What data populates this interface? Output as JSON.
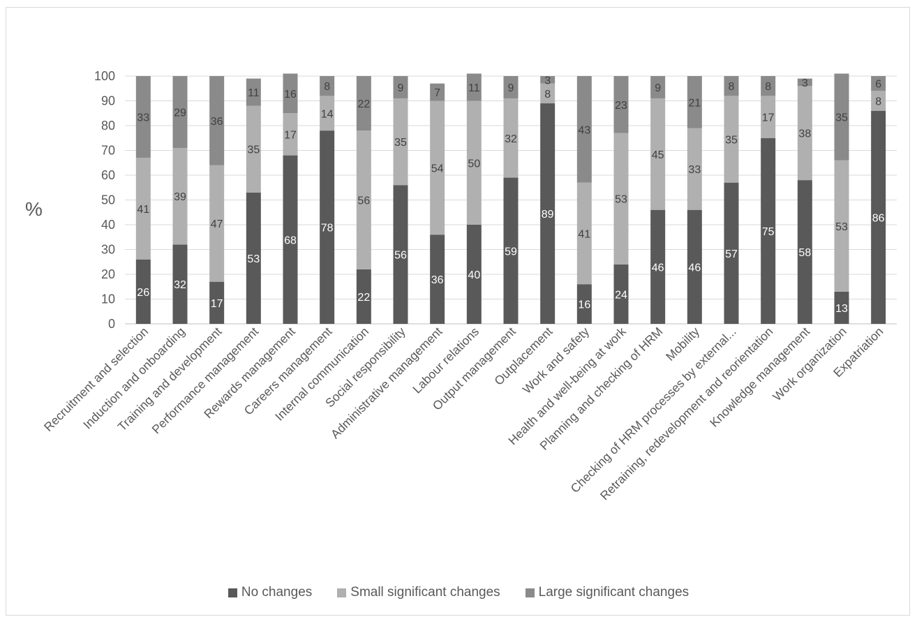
{
  "chart_data": {
    "type": "bar",
    "stacked": true,
    "title": "",
    "xlabel": "",
    "ylabel": "%",
    "ylim": [
      0,
      100
    ],
    "yticks": [
      0,
      10,
      20,
      30,
      40,
      50,
      60,
      70,
      80,
      90,
      100
    ],
    "grid": true,
    "legend_position": "bottom",
    "categories": [
      "Recruitment and selection",
      "Induction and onboarding",
      "Training and development",
      "Performance management",
      "Rewards management",
      "Careers management",
      "Internal communication",
      "Social responsibility",
      "Administrative management",
      "Labour relations",
      "Output management",
      "Outplacement",
      "Work and safety",
      "Health and well-being at work",
      "Planning and checking of HRM",
      "Mobility",
      "Checking of HRM processes by external...",
      "Retraining, redevelopment and reorientation",
      "Knowledge management",
      "Work organization",
      "Expatriation"
    ],
    "series": [
      {
        "name": "No changes",
        "color": "#595959",
        "label_color": "#ffffff",
        "values": [
          26,
          32,
          17,
          53,
          68,
          78,
          22,
          56,
          36,
          40,
          59,
          89,
          16,
          24,
          46,
          46,
          57,
          75,
          58,
          13,
          86
        ]
      },
      {
        "name": "Small significant changes",
        "color": "#b0b0b0",
        "label_color": "#404040",
        "values": [
          41,
          39,
          47,
          35,
          17,
          14,
          56,
          35,
          54,
          50,
          32,
          8,
          41,
          53,
          45,
          33,
          35,
          17,
          38,
          53,
          8
        ]
      },
      {
        "name": "Large significant changes",
        "color": "#8a8a8a",
        "label_color": "#404040",
        "values": [
          33,
          29,
          36,
          11,
          16,
          8,
          22,
          9,
          7,
          11,
          9,
          3,
          43,
          23,
          9,
          21,
          8,
          8,
          3,
          35,
          6
        ]
      }
    ]
  }
}
